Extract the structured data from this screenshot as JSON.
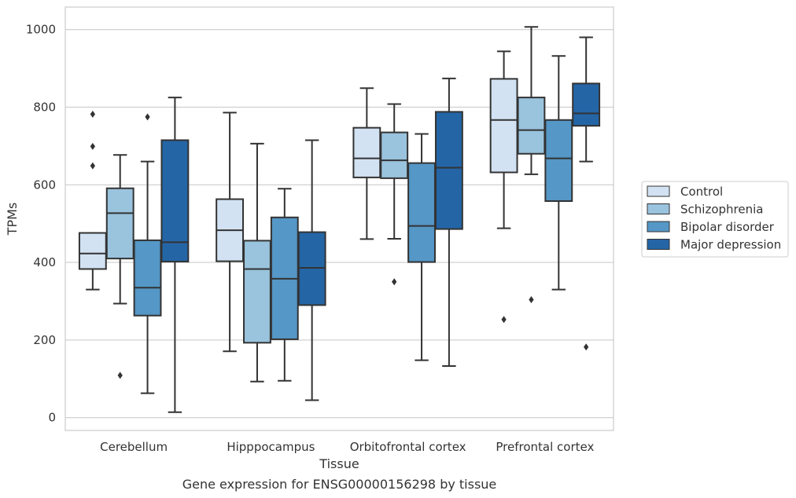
{
  "caption": "Gene expression for ENSG00000156298 by tissue",
  "chart_data": {
    "type": "box",
    "xlabel": "Tissue",
    "ylabel": "TPMs",
    "ylim": [
      -33,
      1058
    ],
    "yticks": [
      0,
      200,
      400,
      600,
      800,
      1000
    ],
    "grid": "horizontal",
    "legend_position": "right",
    "categories": [
      "Cerebellum",
      "Hipppocampus",
      "Orbitofrontal cortex",
      "Prefrontal cortex"
    ],
    "series": [
      {
        "name": "Control",
        "color": "#d2e2f2",
        "boxes": [
          {
            "whislo": 330,
            "q1": 383,
            "med": 423,
            "q3": 476,
            "whishi": 476,
            "fliers": [
              649,
              699,
              782
            ]
          },
          {
            "whislo": 171,
            "q1": 403,
            "med": 483,
            "q3": 563,
            "whishi": 786,
            "fliers": []
          },
          {
            "whislo": 460,
            "q1": 619,
            "med": 668,
            "q3": 747,
            "whishi": 849,
            "fliers": []
          },
          {
            "whislo": 488,
            "q1": 632,
            "med": 767,
            "q3": 873,
            "whishi": 944,
            "fliers": [
              253
            ]
          }
        ]
      },
      {
        "name": "Schizophrenia",
        "color": "#9ac3dd",
        "boxes": [
          {
            "whislo": 294,
            "q1": 410,
            "med": 527,
            "q3": 591,
            "whishi": 677,
            "fliers": [
              109
            ]
          },
          {
            "whislo": 93,
            "q1": 193,
            "med": 383,
            "q3": 456,
            "whishi": 706,
            "fliers": []
          },
          {
            "whislo": 461,
            "q1": 617,
            "med": 663,
            "q3": 735,
            "whishi": 808,
            "fliers": [
              350
            ]
          },
          {
            "whislo": 627,
            "q1": 680,
            "med": 741,
            "q3": 825,
            "whishi": 1007,
            "fliers": [
              304
            ]
          }
        ]
      },
      {
        "name": "Bipolar disorder",
        "color": "#5597c6",
        "boxes": [
          {
            "whislo": 63,
            "q1": 263,
            "med": 335,
            "q3": 457,
            "whishi": 660,
            "fliers": [
              775
            ]
          },
          {
            "whislo": 95,
            "q1": 202,
            "med": 358,
            "q3": 516,
            "whishi": 590,
            "fliers": []
          },
          {
            "whislo": 148,
            "q1": 401,
            "med": 494,
            "q3": 656,
            "whishi": 731,
            "fliers": []
          },
          {
            "whislo": 330,
            "q1": 558,
            "med": 668,
            "q3": 767,
            "whishi": 932,
            "fliers": []
          }
        ]
      },
      {
        "name": "Major depression",
        "color": "#2465a6",
        "boxes": [
          {
            "whislo": 14,
            "q1": 402,
            "med": 452,
            "q3": 715,
            "whishi": 825,
            "fliers": []
          },
          {
            "whislo": 45,
            "q1": 290,
            "med": 386,
            "q3": 478,
            "whishi": 715,
            "fliers": []
          },
          {
            "whislo": 133,
            "q1": 486,
            "med": 644,
            "q3": 788,
            "whishi": 874,
            "fliers": []
          },
          {
            "whislo": 660,
            "q1": 752,
            "med": 784,
            "q3": 861,
            "whishi": 980,
            "fliers": [
              182
            ]
          }
        ]
      }
    ]
  }
}
